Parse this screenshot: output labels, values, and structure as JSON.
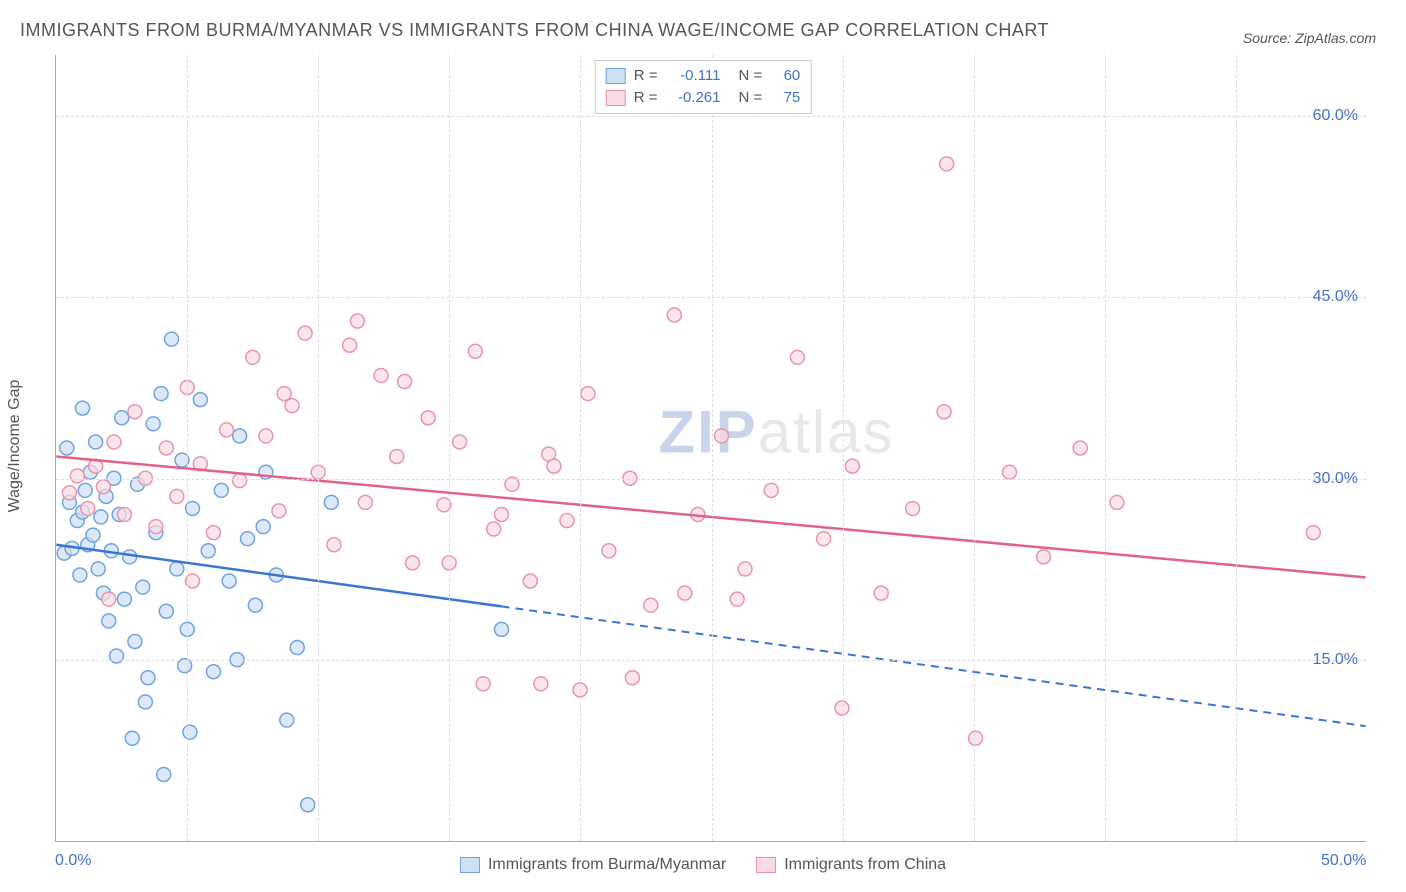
{
  "title": "IMMIGRANTS FROM BURMA/MYANMAR VS IMMIGRANTS FROM CHINA WAGE/INCOME GAP CORRELATION CHART",
  "source": "Source: ZipAtlas.com",
  "ylabel": "Wage/Income Gap",
  "watermark": {
    "zip": "ZIP",
    "atlas": "atlas"
  },
  "chart": {
    "type": "scatter",
    "xlim": [
      0,
      50
    ],
    "ylim": [
      0,
      65
    ],
    "xtick_labels": {
      "0": "0.0%",
      "50": "50.0%"
    },
    "ytick_labels": {
      "15": "15.0%",
      "30": "30.0%",
      "45": "45.0%",
      "60": "60.0%"
    },
    "grid_color": "#dddddd",
    "background_color": "#ffffff",
    "marker_radius": 7,
    "marker_stroke_width": 1.5,
    "line_width": 2.5,
    "series": [
      {
        "name": "Immigrants from Burma/Myanmar",
        "label_key": "burma",
        "fill": "#cfe0f5",
        "stroke": "#6fa4e0",
        "line_color": "#3a76d0",
        "R": "-0.111",
        "N": "60",
        "trend": {
          "x1": 0,
          "y1": 24.5,
          "x2": 50,
          "y2": 9.5,
          "solid_until_x": 17
        },
        "points": [
          [
            0.3,
            23.8
          ],
          [
            0.5,
            28.0
          ],
          [
            0.6,
            24.2
          ],
          [
            0.8,
            26.5
          ],
          [
            0.9,
            22.0
          ],
          [
            1.0,
            27.2
          ],
          [
            1.1,
            29.0
          ],
          [
            1.2,
            24.5
          ],
          [
            1.3,
            30.5
          ],
          [
            1.4,
            25.3
          ],
          [
            1.5,
            33.0
          ],
          [
            1.6,
            22.5
          ],
          [
            1.7,
            26.8
          ],
          [
            1.8,
            20.5
          ],
          [
            1.9,
            28.5
          ],
          [
            2.0,
            18.2
          ],
          [
            2.1,
            24.0
          ],
          [
            2.2,
            30.0
          ],
          [
            2.3,
            15.3
          ],
          [
            2.4,
            27.0
          ],
          [
            2.6,
            20.0
          ],
          [
            2.8,
            23.5
          ],
          [
            3.0,
            16.5
          ],
          [
            3.1,
            29.5
          ],
          [
            3.3,
            21.0
          ],
          [
            3.5,
            13.5
          ],
          [
            3.7,
            34.5
          ],
          [
            3.8,
            25.5
          ],
          [
            4.0,
            37.0
          ],
          [
            4.2,
            19.0
          ],
          [
            4.4,
            41.5
          ],
          [
            4.6,
            22.5
          ],
          [
            4.8,
            31.5
          ],
          [
            5.0,
            17.5
          ],
          [
            5.2,
            27.5
          ],
          [
            5.5,
            36.5
          ],
          [
            5.8,
            24.0
          ],
          [
            6.0,
            14.0
          ],
          [
            6.3,
            29.0
          ],
          [
            6.6,
            21.5
          ],
          [
            7.0,
            33.5
          ],
          [
            7.3,
            25.0
          ],
          [
            7.6,
            19.5
          ],
          [
            8.0,
            30.5
          ],
          [
            8.4,
            22.0
          ],
          [
            8.8,
            10.0
          ],
          [
            9.2,
            16.0
          ],
          [
            9.6,
            3.0
          ],
          [
            4.1,
            5.5
          ],
          [
            5.1,
            9.0
          ],
          [
            2.9,
            8.5
          ],
          [
            3.4,
            11.5
          ],
          [
            4.9,
            14.5
          ],
          [
            6.9,
            15.0
          ],
          [
            7.9,
            26.0
          ],
          [
            2.5,
            35.0
          ],
          [
            1.0,
            35.8
          ],
          [
            0.4,
            32.5
          ],
          [
            17.0,
            17.5
          ],
          [
            10.5,
            28.0
          ]
        ]
      },
      {
        "name": "Immigrants from China",
        "label_key": "china",
        "fill": "#fadbe3",
        "stroke": "#e895aa",
        "line_color": "#e06287",
        "R": "-0.261",
        "N": "75",
        "trend": {
          "x1": 0,
          "y1": 31.8,
          "x2": 50,
          "y2": 21.8,
          "solid_until_x": 50
        },
        "points": [
          [
            0.5,
            28.8
          ],
          [
            0.8,
            30.2
          ],
          [
            1.2,
            27.5
          ],
          [
            1.5,
            31.0
          ],
          [
            1.8,
            29.3
          ],
          [
            2.2,
            33.0
          ],
          [
            2.6,
            27.0
          ],
          [
            3.0,
            35.5
          ],
          [
            3.4,
            30.0
          ],
          [
            3.8,
            26.0
          ],
          [
            4.2,
            32.5
          ],
          [
            4.6,
            28.5
          ],
          [
            5.0,
            37.5
          ],
          [
            5.5,
            31.2
          ],
          [
            6.0,
            25.5
          ],
          [
            6.5,
            34.0
          ],
          [
            7.0,
            29.8
          ],
          [
            7.5,
            40.0
          ],
          [
            8.0,
            33.5
          ],
          [
            8.5,
            27.3
          ],
          [
            9.0,
            36.0
          ],
          [
            9.5,
            42.0
          ],
          [
            10.0,
            30.5
          ],
          [
            10.6,
            24.5
          ],
          [
            11.2,
            41.0
          ],
          [
            11.8,
            28.0
          ],
          [
            12.4,
            38.5
          ],
          [
            13.0,
            31.8
          ],
          [
            13.6,
            23.0
          ],
          [
            14.2,
            35.0
          ],
          [
            14.8,
            27.8
          ],
          [
            15.4,
            33.0
          ],
          [
            16.0,
            40.5
          ],
          [
            16.7,
            25.8
          ],
          [
            17.4,
            29.5
          ],
          [
            18.1,
            21.5
          ],
          [
            18.8,
            32.0
          ],
          [
            19.5,
            26.5
          ],
          [
            20.3,
            37.0
          ],
          [
            21.1,
            24.0
          ],
          [
            21.9,
            30.0
          ],
          [
            22.7,
            19.5
          ],
          [
            23.6,
            43.5
          ],
          [
            24.5,
            27.0
          ],
          [
            25.4,
            33.5
          ],
          [
            26.3,
            22.5
          ],
          [
            27.3,
            29.0
          ],
          [
            28.3,
            40.0
          ],
          [
            2.0,
            20.0
          ],
          [
            29.3,
            25.0
          ],
          [
            30.4,
            31.0
          ],
          [
            31.5,
            20.5
          ],
          [
            32.7,
            27.5
          ],
          [
            33.9,
            35.5
          ],
          [
            35.1,
            8.5
          ],
          [
            36.4,
            30.5
          ],
          [
            37.7,
            23.5
          ],
          [
            39.1,
            32.5
          ],
          [
            40.5,
            28.0
          ],
          [
            48.0,
            25.5
          ],
          [
            20.0,
            12.5
          ],
          [
            22.0,
            13.5
          ],
          [
            24.0,
            20.5
          ],
          [
            26.0,
            20.0
          ],
          [
            18.5,
            13.0
          ],
          [
            34.0,
            56.0
          ],
          [
            30.0,
            11.0
          ],
          [
            16.3,
            13.0
          ],
          [
            13.3,
            38.0
          ],
          [
            5.2,
            21.5
          ],
          [
            8.7,
            37.0
          ],
          [
            11.5,
            43.0
          ],
          [
            15.0,
            23.0
          ],
          [
            17.0,
            27.0
          ],
          [
            19.0,
            31.0
          ]
        ]
      }
    ]
  },
  "legend_labels": {
    "burma": "Immigrants from Burma/Myanmar",
    "china": "Immigrants from China",
    "R": "R =",
    "N": "N ="
  }
}
